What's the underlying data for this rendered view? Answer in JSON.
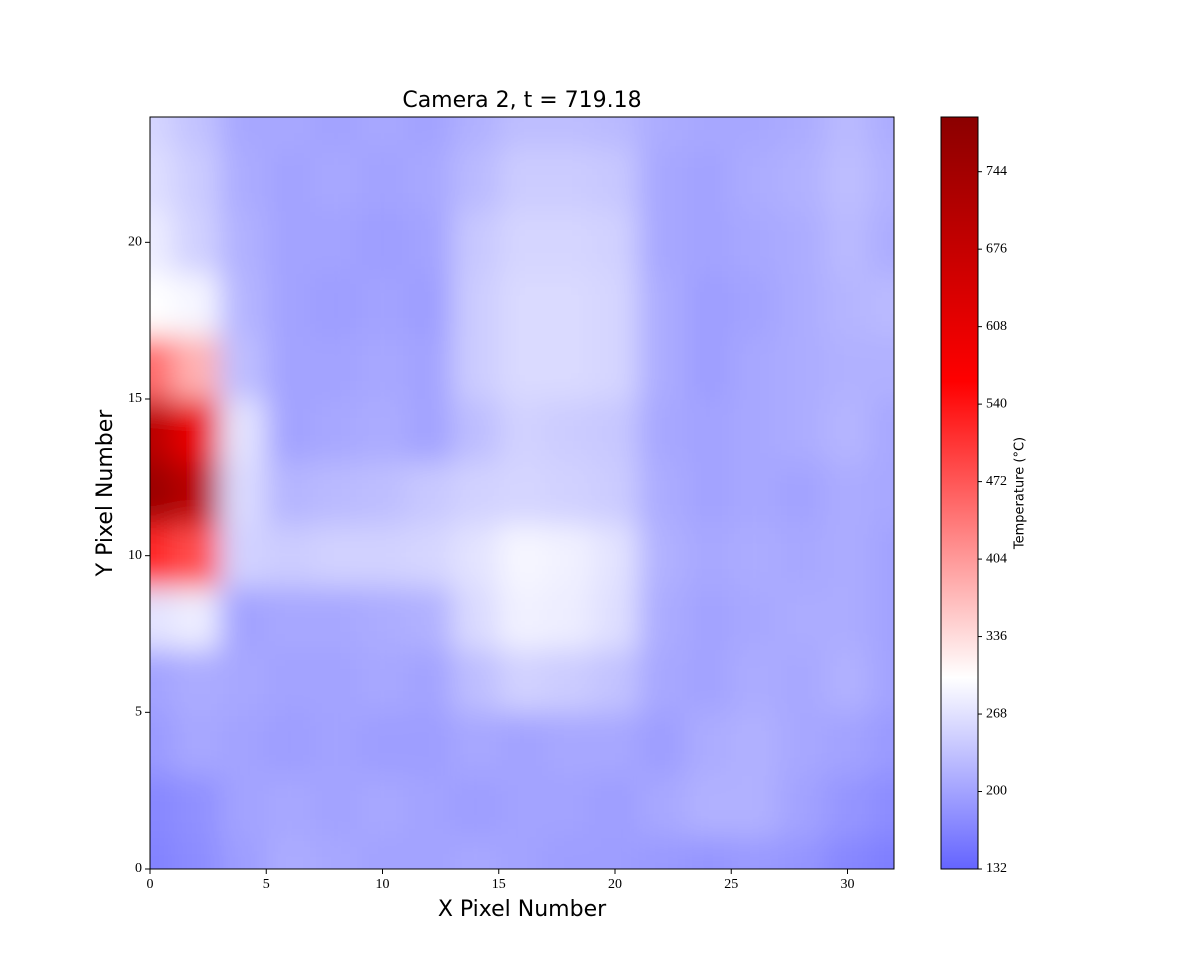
{
  "chart_data": {
    "type": "heatmap",
    "title": "Camera 2, t = 719.18",
    "x_label": "X Pixel Number",
    "y_label": "Y Pixel Number",
    "colorbar_label": "Temperature (°C)",
    "x": [
      0,
      2,
      4,
      6,
      8,
      10,
      12,
      14,
      16,
      18,
      20,
      22,
      24,
      26,
      28,
      30,
      32
    ],
    "y": [
      0,
      2,
      4,
      6,
      8,
      10,
      12,
      14,
      16,
      18,
      20,
      22,
      24
    ],
    "z": [
      [
        165,
        175,
        195,
        210,
        205,
        200,
        200,
        205,
        200,
        195,
        195,
        190,
        185,
        190,
        185,
        170,
        160
      ],
      [
        170,
        180,
        200,
        205,
        200,
        205,
        200,
        195,
        200,
        200,
        195,
        205,
        215,
        215,
        200,
        185,
        175
      ],
      [
        190,
        205,
        200,
        195,
        200,
        195,
        195,
        205,
        200,
        205,
        205,
        195,
        210,
        215,
        205,
        200,
        190
      ],
      [
        200,
        210,
        205,
        200,
        200,
        205,
        200,
        230,
        250,
        245,
        235,
        205,
        200,
        210,
        205,
        215,
        200
      ],
      [
        270,
        280,
        200,
        205,
        205,
        210,
        215,
        260,
        285,
        280,
        265,
        210,
        200,
        205,
        210,
        210,
        200
      ],
      [
        520,
        480,
        250,
        245,
        250,
        250,
        255,
        270,
        290,
        285,
        270,
        215,
        205,
        210,
        205,
        210,
        200
      ],
      [
        760,
        700,
        260,
        220,
        225,
        230,
        240,
        250,
        255,
        250,
        245,
        210,
        200,
        205,
        200,
        210,
        205
      ],
      [
        700,
        600,
        270,
        200,
        205,
        210,
        200,
        230,
        250,
        245,
        240,
        205,
        200,
        205,
        210,
        220,
        205
      ],
      [
        450,
        380,
        230,
        200,
        200,
        205,
        200,
        245,
        260,
        260,
        255,
        210,
        195,
        205,
        210,
        215,
        215
      ],
      [
        300,
        290,
        220,
        200,
        195,
        200,
        195,
        245,
        260,
        260,
        255,
        210,
        195,
        200,
        210,
        220,
        225
      ],
      [
        280,
        250,
        215,
        200,
        200,
        195,
        200,
        240,
        255,
        255,
        250,
        205,
        200,
        205,
        210,
        225,
        210
      ],
      [
        265,
        245,
        210,
        200,
        205,
        200,
        205,
        225,
        245,
        245,
        240,
        205,
        200,
        210,
        215,
        230,
        215
      ],
      [
        255,
        235,
        205,
        205,
        200,
        205,
        200,
        215,
        230,
        230,
        225,
        210,
        205,
        205,
        210,
        225,
        210
      ]
    ],
    "xlim": [
      0,
      32
    ],
    "xticks": [
      0,
      5,
      10,
      15,
      20,
      25,
      30
    ],
    "ylim": [
      0,
      24
    ],
    "yticks": [
      0,
      5,
      10,
      15,
      20
    ],
    "clim": [
      132,
      792
    ],
    "cticks": [
      132,
      200,
      268,
      336,
      404,
      472,
      540,
      608,
      676,
      744
    ],
    "colormap": [
      [
        132,
        "#6464ff"
      ],
      [
        300,
        "#ffffff"
      ],
      [
        560,
        "#ff0000"
      ],
      [
        792,
        "#8b0000"
      ]
    ]
  }
}
